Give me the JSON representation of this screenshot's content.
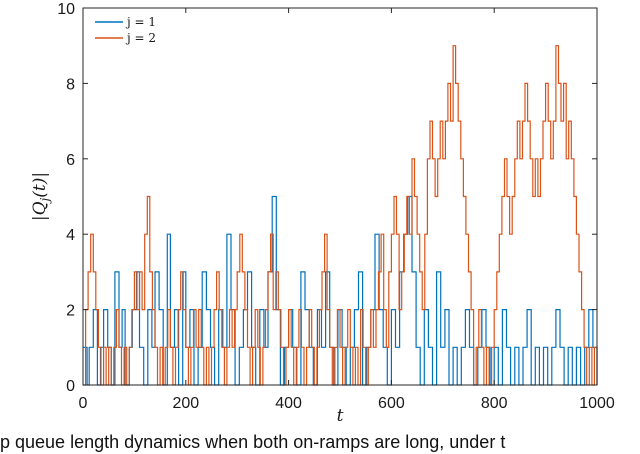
{
  "caption": "p queue length dynamics when both on-ramps are long, under t",
  "chart_data": {
    "type": "line",
    "title": "",
    "xlabel": "t",
    "ylabel": "|Q_j(t)|",
    "xlim": [
      0,
      1000
    ],
    "ylim": [
      0,
      10
    ],
    "xticks": [
      0,
      200,
      400,
      600,
      800,
      1000
    ],
    "yticks": [
      0,
      2,
      4,
      6,
      8,
      10
    ],
    "grid": false,
    "legend_position": "top-left",
    "series": [
      {
        "name": "j = 1",
        "color": "#0072BD",
        "x": [
          0,
          8,
          12,
          20,
          28,
          34,
          40,
          48,
          55,
          62,
          70,
          76,
          82,
          90,
          96,
          104,
          110,
          118,
          126,
          134,
          140,
          148,
          156,
          164,
          170,
          178,
          186,
          194,
          200,
          208,
          216,
          224,
          232,
          240,
          248,
          256,
          264,
          272,
          280,
          288,
          296,
          304,
          312,
          320,
          328,
          336,
          344,
          352,
          360,
          368,
          376,
          384,
          392,
          400,
          408,
          416,
          424,
          432,
          440,
          448,
          456,
          464,
          472,
          480,
          488,
          496,
          504,
          512,
          520,
          528,
          536,
          544,
          552,
          560,
          568,
          576,
          584,
          592,
          600,
          608,
          616,
          624,
          632,
          640,
          648,
          656,
          664,
          672,
          680,
          688,
          696,
          704,
          712,
          720,
          728,
          736,
          744,
          752,
          760,
          768,
          776,
          784,
          792,
          800,
          808,
          816,
          824,
          832,
          840,
          848,
          856,
          864,
          872,
          880,
          888,
          896,
          904,
          912,
          920,
          928,
          936,
          944,
          952,
          960,
          968,
          976,
          984,
          992,
          1000
        ],
        "values": [
          1,
          0,
          1,
          2,
          0,
          1,
          2,
          1,
          0,
          3,
          1,
          2,
          0,
          1,
          2,
          3,
          1,
          0,
          2,
          1,
          3,
          2,
          0,
          4,
          1,
          2,
          0,
          3,
          1,
          2,
          0,
          1,
          3,
          2,
          1,
          0,
          2,
          1,
          4,
          2,
          0,
          1,
          2,
          3,
          1,
          0,
          2,
          1,
          3,
          5,
          2,
          0,
          1,
          2,
          1,
          0,
          3,
          2,
          1,
          0,
          2,
          1,
          3,
          1,
          0,
          2,
          1,
          0,
          1,
          2,
          3,
          0,
          1,
          2,
          4,
          2,
          1,
          0,
          2,
          1,
          3,
          4,
          5,
          3,
          1,
          0,
          2,
          1,
          0,
          3,
          1,
          2,
          0,
          1,
          0,
          1,
          2,
          1,
          0,
          1,
          2,
          1,
          0,
          1,
          0,
          2,
          1,
          0,
          1,
          0,
          1,
          2,
          0,
          1,
          0,
          1,
          0,
          1,
          2,
          1,
          0,
          1,
          0,
          1,
          0,
          1,
          2,
          1,
          0
        ]
      },
      {
        "name": "j = 2",
        "color": "#D95319",
        "x": [
          0,
          5,
          10,
          15,
          20,
          25,
          30,
          35,
          40,
          45,
          50,
          55,
          60,
          65,
          70,
          75,
          80,
          85,
          90,
          95,
          100,
          105,
          110,
          115,
          120,
          125,
          130,
          135,
          140,
          145,
          150,
          155,
          160,
          165,
          170,
          175,
          180,
          185,
          190,
          195,
          200,
          205,
          210,
          215,
          220,
          225,
          230,
          235,
          240,
          245,
          250,
          255,
          260,
          265,
          270,
          275,
          280,
          285,
          290,
          295,
          300,
          305,
          310,
          315,
          320,
          325,
          330,
          335,
          340,
          345,
          350,
          355,
          360,
          365,
          370,
          375,
          380,
          385,
          390,
          395,
          400,
          405,
          410,
          415,
          420,
          425,
          430,
          435,
          440,
          445,
          450,
          455,
          460,
          465,
          470,
          475,
          480,
          485,
          490,
          495,
          500,
          505,
          510,
          515,
          520,
          525,
          530,
          535,
          540,
          545,
          550,
          555,
          560,
          565,
          570,
          575,
          580,
          585,
          590,
          595,
          600,
          605,
          610,
          615,
          620,
          625,
          630,
          635,
          640,
          645,
          650,
          655,
          660,
          665,
          670,
          675,
          680,
          685,
          690,
          695,
          700,
          705,
          710,
          715,
          720,
          725,
          730,
          735,
          740,
          745,
          750,
          755,
          760,
          765,
          770,
          775,
          780,
          785,
          790,
          795,
          800,
          805,
          810,
          815,
          820,
          825,
          830,
          835,
          840,
          845,
          850,
          855,
          860,
          865,
          870,
          875,
          880,
          885,
          890,
          895,
          900,
          905,
          910,
          915,
          920,
          925,
          930,
          935,
          940,
          945,
          950,
          955,
          960,
          965,
          970,
          975,
          980,
          985,
          990,
          995,
          1000
        ],
        "values": [
          0,
          2,
          3,
          4,
          3,
          2,
          1,
          0,
          1,
          0,
          1,
          0,
          1,
          2,
          1,
          0,
          1,
          0,
          1,
          2,
          3,
          2,
          3,
          2,
          4,
          5,
          3,
          2,
          1,
          0,
          1,
          0,
          1,
          2,
          1,
          0,
          1,
          2,
          3,
          2,
          1,
          0,
          1,
          2,
          1,
          2,
          1,
          0,
          1,
          0,
          1,
          2,
          3,
          2,
          1,
          0,
          1,
          2,
          1,
          2,
          3,
          4,
          3,
          2,
          1,
          0,
          1,
          2,
          1,
          0,
          1,
          2,
          3,
          4,
          2,
          3,
          2,
          1,
          0,
          1,
          2,
          1,
          0,
          1,
          2,
          1,
          0,
          1,
          2,
          1,
          0,
          1,
          2,
          3,
          4,
          2,
          1,
          0,
          1,
          2,
          1,
          0,
          1,
          2,
          1,
          0,
          1,
          0,
          2,
          1,
          0,
          1,
          2,
          1,
          2,
          3,
          4,
          2,
          1,
          3,
          4,
          5,
          4,
          2,
          3,
          4,
          5,
          4,
          6,
          5,
          4,
          3,
          2,
          4,
          6,
          7,
          6,
          5,
          6,
          7,
          6,
          7,
          8,
          7,
          9,
          8,
          7,
          6,
          5,
          4,
          3,
          2,
          0,
          1,
          2,
          1,
          0,
          1,
          0,
          1,
          2,
          3,
          4,
          5,
          6,
          5,
          4,
          5,
          6,
          7,
          6,
          7,
          8,
          7,
          6,
          5,
          6,
          5,
          6,
          7,
          8,
          7,
          6,
          7,
          9,
          8,
          7,
          8,
          6,
          7,
          6,
          5,
          4,
          3,
          2,
          1,
          0,
          1,
          0,
          1,
          0
        ]
      }
    ]
  }
}
